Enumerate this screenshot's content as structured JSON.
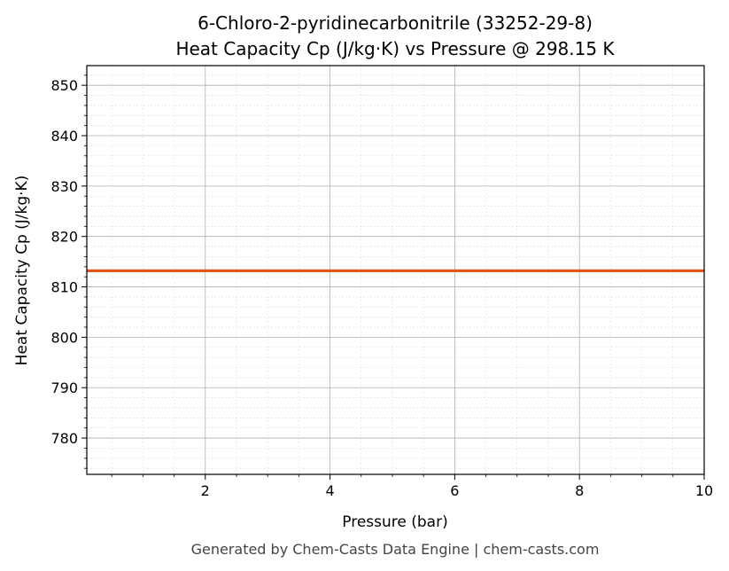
{
  "chart_data": {
    "type": "line",
    "title": "6-Chloro-2-pyridinecarbonitrile (33252-29-8)",
    "subtitle": "Heat Capacity Cp (J/kg·K) vs Pressure @ 298.15 K",
    "xlabel": "Pressure (bar)",
    "ylabel": "Heat Capacity Cp (J/kg·K)",
    "xlim": [
      0.1,
      10
    ],
    "ylim": [
      772.8,
      853.9
    ],
    "xticks": [
      2,
      4,
      6,
      8,
      10
    ],
    "yticks": [
      780,
      790,
      800,
      810,
      820,
      830,
      840,
      850
    ],
    "grid": true,
    "series": [
      {
        "x": [
          0.1,
          10
        ],
        "y": [
          813.2,
          813.2
        ],
        "color": "#E0561F"
      }
    ],
    "footer": "Generated by Chem-Casts Data Engine | chem-casts.com"
  }
}
